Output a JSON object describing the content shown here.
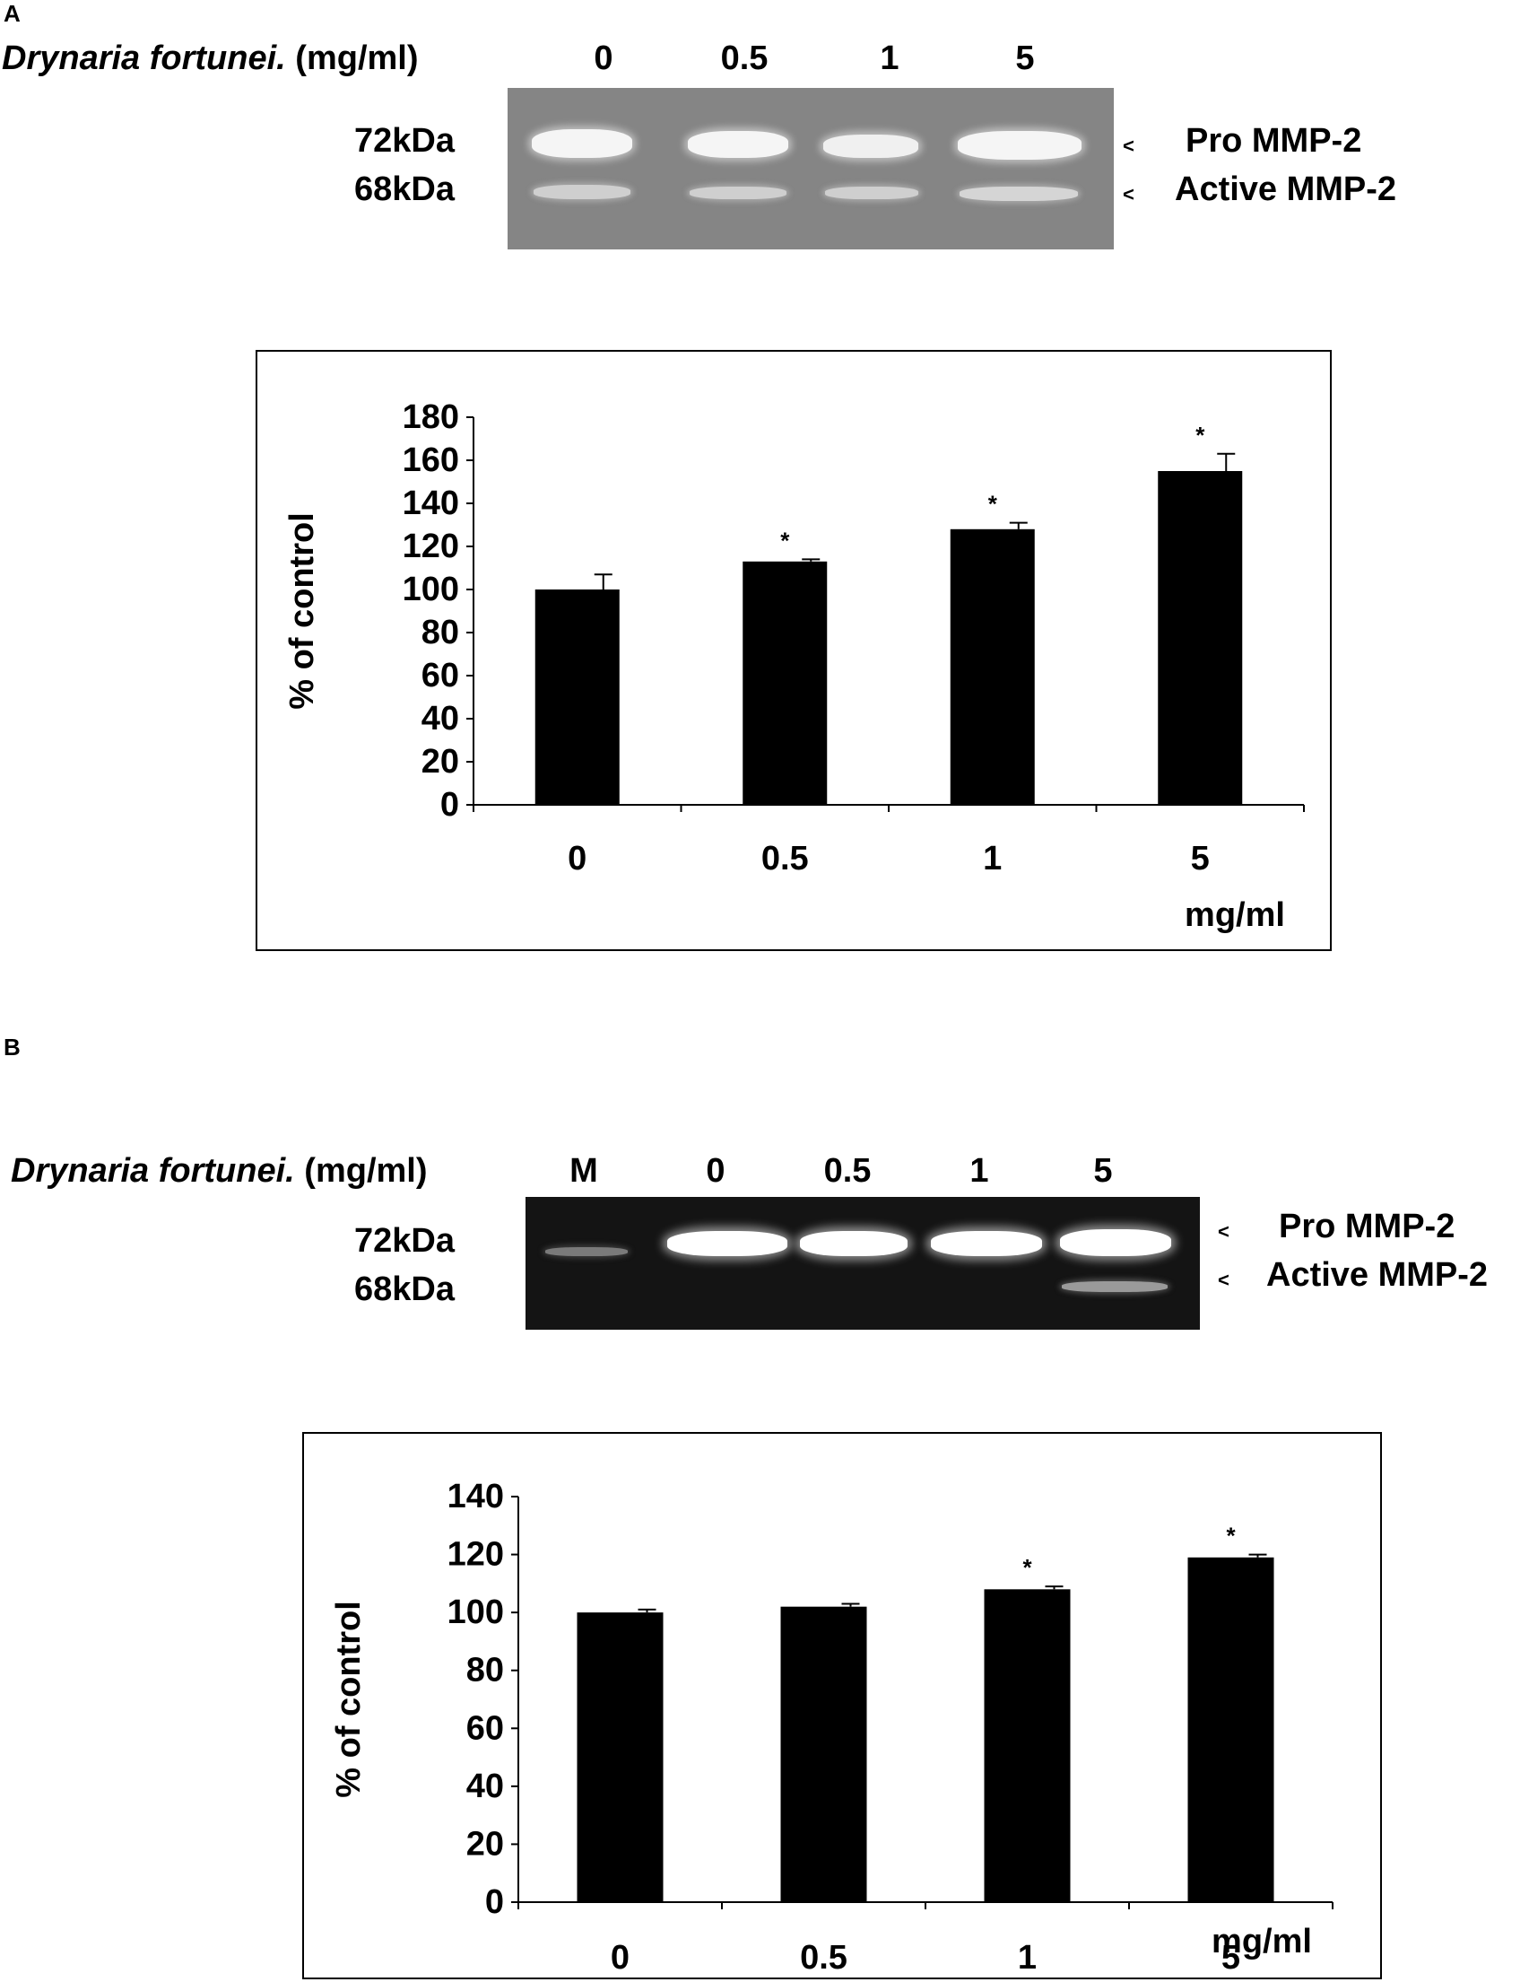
{
  "panelA": {
    "letter": "A",
    "gel": {
      "header_species": "Drynaria fortunei.",
      "header_unit": "(mg/ml)",
      "lanes": [
        "0",
        "0.5",
        "1",
        "5"
      ],
      "kda": [
        "72kDa",
        "68kDa"
      ],
      "bands": [
        "Pro MMP-2",
        "Active MMP-2"
      ],
      "background": "#858585"
    },
    "chart_data": {
      "type": "bar",
      "categories": [
        "0",
        "0.5",
        "1",
        "5"
      ],
      "values": [
        100,
        113,
        128,
        155
      ],
      "errors": [
        7,
        1,
        3,
        8
      ],
      "significance": [
        "",
        "*",
        "*",
        "*"
      ],
      "ylabel": "% of control",
      "xlabel": "mg/ml",
      "ylim": [
        0,
        180
      ],
      "yticks": [
        0,
        20,
        40,
        60,
        80,
        100,
        120,
        140,
        160,
        180
      ],
      "bar_color": "#000000"
    }
  },
  "panelB": {
    "letter": "B",
    "gel": {
      "header_species": "Drynaria fortunei.",
      "header_unit": "(mg/ml)",
      "lanes": [
        "M",
        "0",
        "0.5",
        "1",
        "5"
      ],
      "kda": [
        "72kDa",
        "68kDa"
      ],
      "bands": [
        "Pro MMP-2",
        "Active MMP-2"
      ],
      "background": "#141414"
    },
    "chart_data": {
      "type": "bar",
      "categories": [
        "0",
        "0.5",
        "1",
        "5"
      ],
      "values": [
        100,
        102,
        108,
        119
      ],
      "errors": [
        1,
        1,
        1,
        1
      ],
      "significance": [
        "",
        "",
        "*",
        "*"
      ],
      "ylabel": "% of control",
      "xlabel": "mg/ml",
      "ylim": [
        0,
        140
      ],
      "yticks": [
        0,
        20,
        40,
        60,
        80,
        100,
        120,
        140
      ],
      "bar_color": "#000000"
    }
  }
}
